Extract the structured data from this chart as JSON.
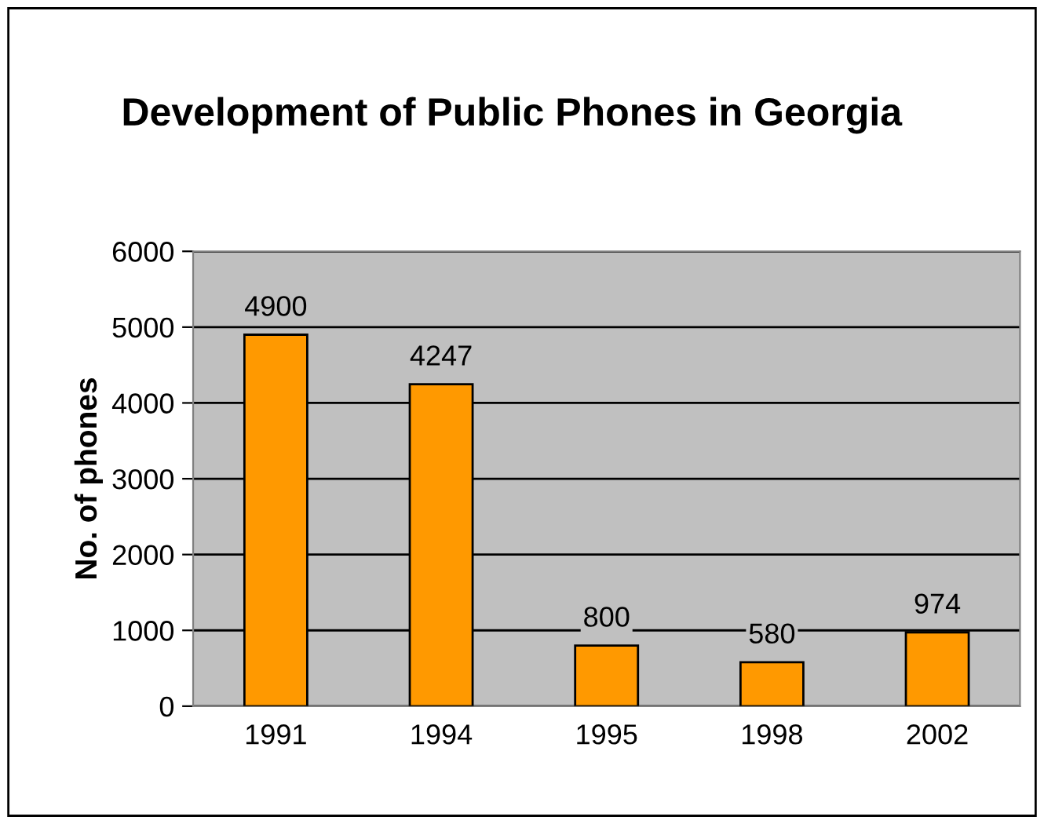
{
  "chart_data": {
    "type": "bar",
    "title": "Development of Public Phones in Georgia",
    "ylabel": "No. of phones",
    "categories": [
      "1991",
      "1994",
      "1995",
      "1998",
      "2002"
    ],
    "values": [
      4900,
      4247,
      800,
      580,
      974
    ],
    "color": "#ff9900",
    "data_labels": true,
    "ylim": [
      0,
      6000
    ],
    "yticks": [
      0,
      1000,
      2000,
      3000,
      4000,
      5000,
      6000
    ],
    "grid": "y",
    "legend": false
  }
}
